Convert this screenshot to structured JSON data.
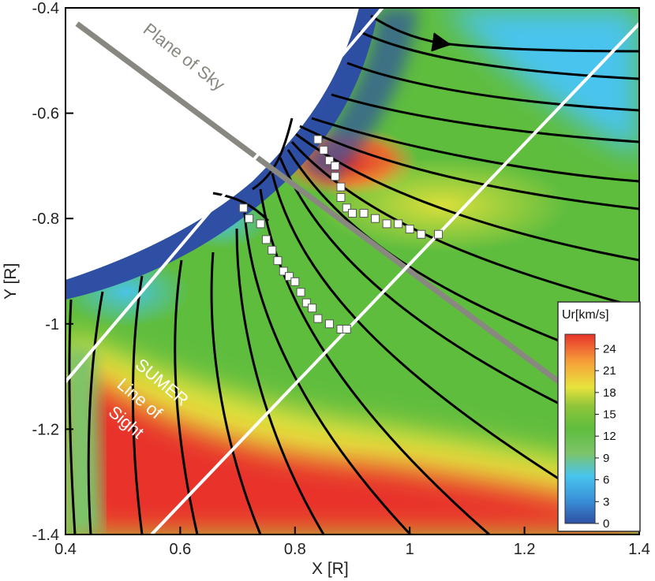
{
  "chart_data": {
    "type": "heatmap",
    "xlabel": "X [R]",
    "ylabel": "Y [R]",
    "xlim": [
      0.4,
      1.4
    ],
    "ylim": [
      -1.4,
      -0.4
    ],
    "xticks": [
      0.4,
      0.6,
      0.8,
      1,
      1.2,
      1.4
    ],
    "xtick_labels": [
      "0.4",
      "0.6",
      "0.8",
      "1",
      "1.2",
      "1.4"
    ],
    "yticks": [
      -0.4,
      -0.6,
      -0.8,
      -1,
      -1.2,
      -1.4
    ],
    "ytick_labels": [
      "-0.4",
      "-0.6",
      "-0.8",
      "-1",
      "-1.2",
      "-1.4"
    ],
    "colorbar": {
      "title": "Ur[km/s]",
      "ticks": [
        0,
        3,
        6,
        9,
        12,
        15,
        18,
        21,
        24
      ],
      "tick_labels": [
        "0",
        "3",
        "6",
        "9",
        "12",
        "15",
        "18",
        "21",
        "24"
      ],
      "colors": [
        "#2e4fa3",
        "#3a8fd8",
        "#48c4ee",
        "#7cc46a",
        "#5fbd3e",
        "#8fc43a",
        "#e7e33c",
        "#f7a23a",
        "#e8322a"
      ]
    },
    "annotations": {
      "plane_of_sky": "Plane of Sky",
      "sumer_line1": "SUMER",
      "sumer_line2": "Line of",
      "sumer_line3": "Sight"
    },
    "plane_of_sky_line": {
      "x": [
        0.42,
        1.26
      ],
      "y": [
        -0.43,
        -1.11
      ]
    },
    "sumer_line_upper": {
      "x": [
        0.4,
        0.96
      ],
      "y": [
        -1.11,
        -0.39
      ]
    },
    "sumer_line_lower": {
      "x": [
        0.55,
        1.4
      ],
      "y": [
        -1.4,
        -0.43
      ]
    },
    "markers_series_1": {
      "x": [
        0.84,
        0.85,
        0.86,
        0.87,
        0.87,
        0.88,
        0.88,
        0.89,
        0.9,
        0.92,
        0.94,
        0.96,
        0.98,
        1.0,
        1.02,
        1.05
      ],
      "y": [
        -0.65,
        -0.67,
        -0.69,
        -0.7,
        -0.72,
        -0.74,
        -0.76,
        -0.78,
        -0.79,
        -0.79,
        -0.8,
        -0.81,
        -0.81,
        -0.82,
        -0.83,
        -0.83
      ]
    },
    "markers_series_2": {
      "x": [
        0.71,
        0.72,
        0.74,
        0.75,
        0.76,
        0.77,
        0.78,
        0.79,
        0.8,
        0.81,
        0.82,
        0.83,
        0.84,
        0.86,
        0.88,
        0.89
      ],
      "y": [
        -0.78,
        -0.8,
        -0.81,
        -0.84,
        -0.86,
        -0.88,
        -0.9,
        -0.91,
        -0.92,
        -0.94,
        -0.96,
        -0.97,
        -0.99,
        -1.0,
        -1.01,
        -1.01
      ]
    }
  }
}
